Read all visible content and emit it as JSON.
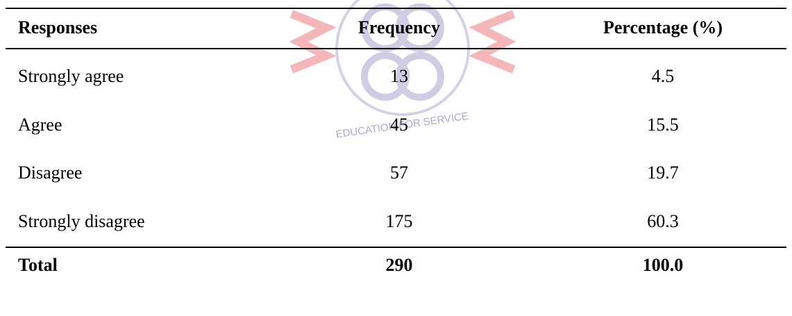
{
  "table": {
    "header": [
      "Responses",
      "Frequency",
      "Percentage (%)"
    ],
    "rows": [
      [
        "Strongly agree",
        "13",
        "4.5"
      ],
      [
        "Agree",
        "45",
        "15.5"
      ],
      [
        "Disagree",
        "57",
        "19.7"
      ],
      [
        "Strongly disagree",
        "175",
        "60.3"
      ]
    ],
    "total": [
      "Total",
      "290",
      "100.0"
    ]
  },
  "watermark": "EDUCATION FOR SERVICE"
}
